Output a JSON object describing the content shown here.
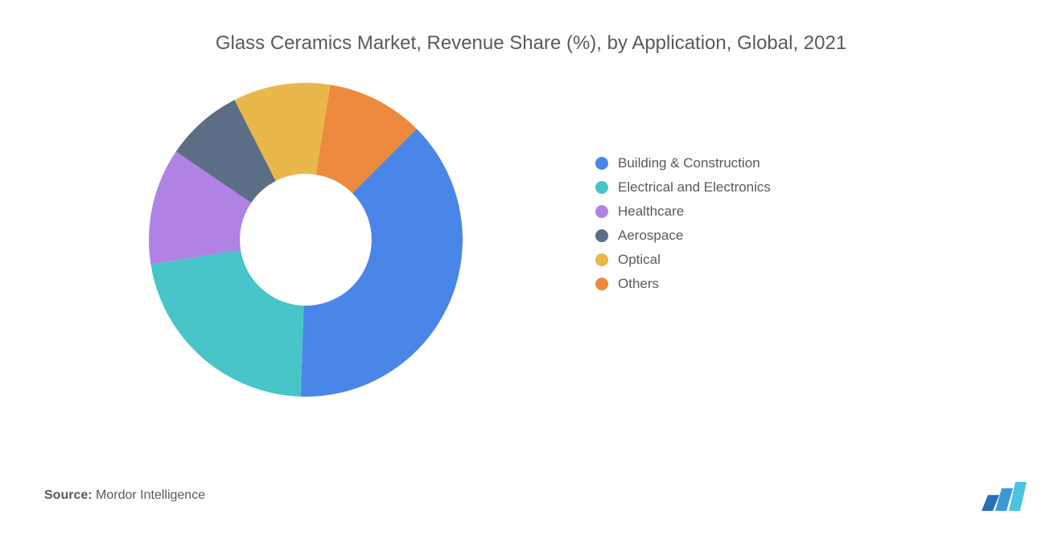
{
  "chart": {
    "type": "donut",
    "title": "Glass Ceramics Market, Revenue Share (%), by Application, Global, 2021",
    "title_fontsize": 24,
    "title_color": "#5a5a5a",
    "background_color": "#ffffff",
    "inner_radius_ratio": 0.42,
    "segments": [
      {
        "label": "Building &amp; Construction",
        "value": 38,
        "color": "#4a86e8"
      },
      {
        "label": "Electrical and Electronics",
        "value": 22,
        "color": "#47c5c8"
      },
      {
        "label": "Healthcare",
        "value": 12,
        "color": "#b082e3"
      },
      {
        "label": "Aerospace",
        "value": 8,
        "color": "#5c6d86"
      },
      {
        "label": "Optical",
        "value": 10,
        "color": "#e8b84a"
      },
      {
        "label": "Others",
        "value": 10,
        "color": "#ed8a3d"
      }
    ],
    "start_angle_deg": -45
  },
  "legend": {
    "fontsize": 17,
    "color": "#5a5a5a",
    "swatch_size": 16
  },
  "source": {
    "label": "Source:",
    "value": "Mordor Intelligence",
    "fontsize": 16,
    "color": "#5a5a5a"
  },
  "logo": {
    "bars": [
      {
        "color": "#2a6fb5",
        "height_ratio": 0.55
      },
      {
        "color": "#3a9bd4",
        "height_ratio": 0.78
      },
      {
        "color": "#4cc4e0",
        "height_ratio": 1.0
      }
    ]
  }
}
